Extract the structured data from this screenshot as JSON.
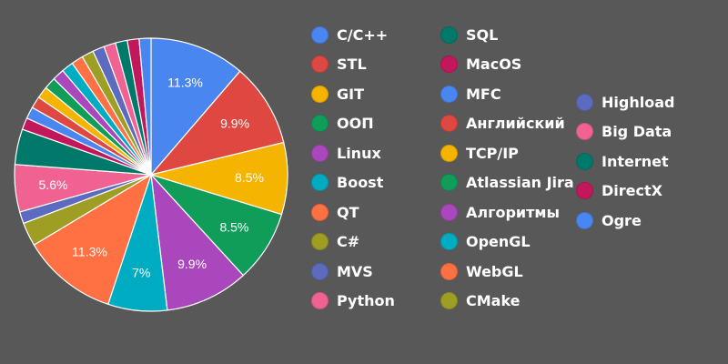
{
  "chart_data": {
    "type": "pie",
    "title": "",
    "start_angle_deg": 0,
    "direction": "clockwise",
    "legend_placement": "right",
    "slices": [
      {
        "label": "C/C++",
        "value": 11.3,
        "color": "#4a86f0",
        "data_label": "11.3%"
      },
      {
        "label": "STL",
        "value": 9.9,
        "color": "#de4840",
        "data_label": "9.9%"
      },
      {
        "label": "GIT",
        "value": 8.5,
        "color": "#f4b400",
        "data_label": "8.5%"
      },
      {
        "label": "ООП",
        "value": 8.5,
        "color": "#109d59",
        "data_label": "8.5%"
      },
      {
        "label": "Linux",
        "value": 9.9,
        "color": "#ab47bc",
        "data_label": "9.9%"
      },
      {
        "label": "Boost",
        "value": 7.0,
        "color": "#00acc1",
        "data_label": "7%"
      },
      {
        "label": "QT",
        "value": 11.3,
        "color": "#ff7043",
        "data_label": "11.3%"
      },
      {
        "label": "C#",
        "value": 2.8,
        "color": "#9e9d24",
        "data_label": ""
      },
      {
        "label": "MVS",
        "value": 1.4,
        "color": "#5c6bc0",
        "data_label": ""
      },
      {
        "label": "Python",
        "value": 5.6,
        "color": "#f06292",
        "data_label": "5.6%"
      },
      {
        "label": "SQL",
        "value": 4.2,
        "color": "#00796b",
        "data_label": ""
      },
      {
        "label": "MacOS",
        "value": 1.4,
        "color": "#c2185b",
        "data_label": ""
      },
      {
        "label": "MFC",
        "value": 1.4,
        "color": "#4a86f0",
        "data_label": ""
      },
      {
        "label": "Английский",
        "value": 1.4,
        "color": "#de4840",
        "data_label": ""
      },
      {
        "label": "TCP/IP",
        "value": 1.4,
        "color": "#f4b400",
        "data_label": ""
      },
      {
        "label": "Atlassian Jira",
        "value": 1.4,
        "color": "#109d59",
        "data_label": ""
      },
      {
        "label": "Алгоритмы",
        "value": 1.4,
        "color": "#ab47bc",
        "data_label": ""
      },
      {
        "label": "OpenGL",
        "value": 1.4,
        "color": "#00acc1",
        "data_label": ""
      },
      {
        "label": "WebGL",
        "value": 1.4,
        "color": "#ff7043",
        "data_label": ""
      },
      {
        "label": "CMake",
        "value": 1.4,
        "color": "#9e9d24",
        "data_label": ""
      },
      {
        "label": "Highload",
        "value": 1.4,
        "color": "#5c6bc0",
        "data_label": ""
      },
      {
        "label": "Big Data",
        "value": 1.4,
        "color": "#f06292",
        "data_label": ""
      },
      {
        "label": "Internet",
        "value": 1.4,
        "color": "#00796b",
        "data_label": ""
      },
      {
        "label": "DirectX",
        "value": 1.4,
        "color": "#c2185b",
        "data_label": ""
      },
      {
        "label": "Ogre",
        "value": 1.4,
        "color": "#4a86f0",
        "data_label": ""
      }
    ]
  }
}
